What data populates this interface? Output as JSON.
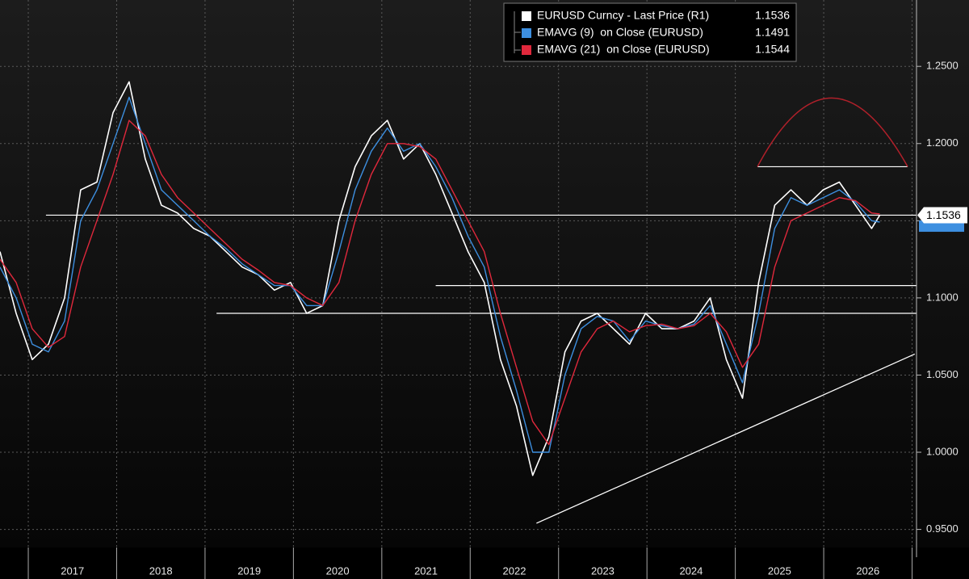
{
  "chart_data": {
    "type": "line",
    "x": [
      2016.68,
      2016.863,
      2017.045,
      2017.228,
      2017.411,
      2017.593,
      2017.776,
      2017.959,
      2018.141,
      2018.324,
      2018.506,
      2018.689,
      2018.872,
      2019.054,
      2019.237,
      2019.42,
      2019.602,
      2019.785,
      2019.967,
      2020.15,
      2020.333,
      2020.515,
      2020.698,
      2020.881,
      2021.063,
      2021.246,
      2021.429,
      2021.611,
      2021.794,
      2021.976,
      2022.159,
      2022.342,
      2022.524,
      2022.707,
      2022.89,
      2023.072,
      2023.255,
      2023.437,
      2023.62,
      2023.803,
      2023.985,
      2024.168,
      2024.351,
      2024.533,
      2024.716,
      2024.898,
      2025.081,
      2025.264,
      2025.446,
      2025.629,
      2025.812,
      2025.994,
      2026.177,
      2026.36,
      2026.542,
      2026.634
    ],
    "series": [
      {
        "name": "EURUSD Curncy - Last Price (R1)",
        "color": "#ffffff",
        "width": 1.6,
        "values": [
          1.13,
          1.09,
          1.06,
          1.07,
          1.1,
          1.17,
          1.175,
          1.22,
          1.24,
          1.19,
          1.16,
          1.155,
          1.145,
          1.14,
          1.13,
          1.12,
          1.115,
          1.105,
          1.11,
          1.09,
          1.095,
          1.15,
          1.185,
          1.205,
          1.215,
          1.19,
          1.2,
          1.18,
          1.155,
          1.13,
          1.11,
          1.06,
          1.03,
          0.985,
          1.01,
          1.065,
          1.085,
          1.09,
          1.08,
          1.07,
          1.09,
          1.08,
          1.08,
          1.085,
          1.1,
          1.06,
          1.035,
          1.11,
          1.16,
          1.17,
          1.16,
          1.17,
          1.175,
          1.16,
          1.145,
          1.1536
        ]
      },
      {
        "name": "EMAVG (9)  on Close (EURUSD)",
        "color": "#3d8fe0",
        "width": 1.4,
        "values": [
          1.12,
          1.1,
          1.07,
          1.065,
          1.085,
          1.15,
          1.17,
          1.2,
          1.23,
          1.2,
          1.17,
          1.16,
          1.15,
          1.14,
          1.132,
          1.122,
          1.115,
          1.108,
          1.108,
          1.095,
          1.095,
          1.13,
          1.17,
          1.195,
          1.21,
          1.195,
          1.2,
          1.185,
          1.165,
          1.14,
          1.12,
          1.075,
          1.04,
          1.0,
          1.0,
          1.05,
          1.08,
          1.088,
          1.085,
          1.072,
          1.085,
          1.082,
          1.08,
          1.083,
          1.095,
          1.07,
          1.045,
          1.09,
          1.145,
          1.165,
          1.16,
          1.165,
          1.17,
          1.162,
          1.15,
          1.1491
        ]
      },
      {
        "name": "EMAVG (21)  on Close (EURUSD)",
        "color": "#e0283c",
        "width": 1.4,
        "values": [
          1.125,
          1.11,
          1.08,
          1.068,
          1.075,
          1.12,
          1.15,
          1.18,
          1.215,
          1.205,
          1.18,
          1.165,
          1.155,
          1.145,
          1.135,
          1.125,
          1.118,
          1.11,
          1.108,
          1.1,
          1.095,
          1.11,
          1.15,
          1.18,
          1.2,
          1.2,
          1.198,
          1.19,
          1.17,
          1.15,
          1.13,
          1.09,
          1.055,
          1.02,
          1.005,
          1.035,
          1.065,
          1.08,
          1.085,
          1.078,
          1.082,
          1.083,
          1.08,
          1.082,
          1.09,
          1.078,
          1.055,
          1.07,
          1.12,
          1.15,
          1.155,
          1.16,
          1.165,
          1.163,
          1.155,
          1.1544
        ]
      }
    ],
    "xlim": [
      2016.68,
      2027.05
    ],
    "ylim": [
      0.932,
      1.293
    ],
    "xticks": [
      {
        "value": 2017.5,
        "label": "2017"
      },
      {
        "value": 2018.5,
        "label": "2018"
      },
      {
        "value": 2019.5,
        "label": "2019"
      },
      {
        "value": 2020.5,
        "label": "2020"
      },
      {
        "value": 2021.5,
        "label": "2021"
      },
      {
        "value": 2022.5,
        "label": "2022"
      },
      {
        "value": 2023.5,
        "label": "2023"
      },
      {
        "value": 2024.5,
        "label": "2024"
      },
      {
        "value": 2025.5,
        "label": "2025"
      },
      {
        "value": 2026.5,
        "label": "2026"
      }
    ],
    "xgrid": [
      2017,
      2018,
      2019,
      2020,
      2021,
      2022,
      2023,
      2024,
      2025,
      2026,
      2027
    ],
    "yticks": [
      {
        "value": 0.95,
        "label": "0.9500"
      },
      {
        "value": 1.0,
        "label": "1.0000"
      },
      {
        "value": 1.05,
        "label": "1.0500"
      },
      {
        "value": 1.1,
        "label": "1.1000"
      },
      {
        "value": 1.15,
        "label": "1.1500"
      },
      {
        "value": 1.2,
        "label": "1.2000"
      },
      {
        "value": 1.25,
        "label": "1.2500"
      }
    ],
    "grid": true,
    "legend": "top-center",
    "annotations": {
      "color": "#ffffff",
      "hlines": [
        {
          "y": 1.1536,
          "x": [
            2017.2,
            2027.05
          ]
        },
        {
          "y": 1.108,
          "x": [
            2021.61,
            2027.05
          ]
        },
        {
          "y": 1.09,
          "x": [
            2019.13,
            2027.05
          ]
        },
        {
          "y": 1.185,
          "x": [
            2025.25,
            2026.95
          ]
        }
      ],
      "trendline": {
        "x": [
          2022.75,
          2027.03
        ],
        "y": [
          0.954,
          1.0636
        ]
      },
      "arc": {
        "color": "#b0202a",
        "x": [
          2025.25,
          2026.09,
          2026.95
        ],
        "y": [
          1.185,
          1.2295,
          1.185
        ]
      }
    }
  }
}
